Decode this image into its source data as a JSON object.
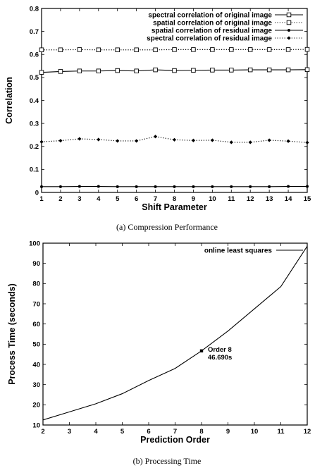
{
  "chart_data": [
    {
      "type": "line",
      "title": "",
      "xlabel": "Shift Parameter",
      "ylabel": "Correlation",
      "x": [
        1,
        2,
        3,
        4,
        5,
        6,
        7,
        8,
        9,
        10,
        11,
        12,
        13,
        14,
        15
      ],
      "xlim": [
        1,
        15
      ],
      "ylim": [
        0,
        0.8
      ],
      "xticks": [
        "1",
        "2",
        "3",
        "4",
        "5",
        "6",
        "7",
        "8",
        "9",
        "10",
        "11",
        "12",
        "13",
        "14",
        "15"
      ],
      "yticks": [
        "0",
        "0.1",
        "0.2",
        "0.3",
        "0.4",
        "0.5",
        "0.6",
        "0.7",
        "0.8"
      ],
      "grid": false,
      "legend_position": "top-right",
      "series": [
        {
          "name": "spectral correlation of original image",
          "style": "solid",
          "marker": "open-square",
          "values": [
            0.522,
            0.526,
            0.528,
            0.528,
            0.53,
            0.528,
            0.533,
            0.53,
            0.531,
            0.532,
            0.532,
            0.533,
            0.533,
            0.533,
            0.534
          ]
        },
        {
          "name": "spatial correlation of original image",
          "style": "dotted",
          "marker": "open-square",
          "values": [
            0.62,
            0.62,
            0.621,
            0.62,
            0.62,
            0.62,
            0.62,
            0.621,
            0.621,
            0.621,
            0.621,
            0.621,
            0.621,
            0.621,
            0.622
          ]
        },
        {
          "name": "spatial correlation of residual image",
          "style": "solid",
          "marker": "filled-circle",
          "values": [
            0.025,
            0.025,
            0.026,
            0.026,
            0.025,
            0.025,
            0.025,
            0.025,
            0.025,
            0.025,
            0.025,
            0.025,
            0.025,
            0.026,
            0.026
          ]
        },
        {
          "name": "spectral correlation of residual image",
          "style": "dotted",
          "marker": "filled-diamond",
          "values": [
            0.22,
            0.225,
            0.233,
            0.23,
            0.224,
            0.224,
            0.243,
            0.229,
            0.226,
            0.227,
            0.218,
            0.218,
            0.227,
            0.223,
            0.217
          ]
        }
      ]
    },
    {
      "type": "line",
      "title": "",
      "xlabel": "Prediction Order",
      "ylabel": "Process Time (seconds)",
      "x": [
        2,
        3,
        4,
        5,
        6,
        7,
        8,
        9,
        10,
        11,
        12
      ],
      "xlim": [
        2,
        12
      ],
      "ylim": [
        10,
        100
      ],
      "xticks": [
        "2",
        "3",
        "4",
        "5",
        "6",
        "7",
        "8",
        "9",
        "10",
        "11",
        "12"
      ],
      "yticks": [
        "10",
        "20",
        "30",
        "40",
        "50",
        "60",
        "70",
        "80",
        "90",
        "100"
      ],
      "grid": false,
      "legend_position": "top-right",
      "series": [
        {
          "name": "online least squares",
          "style": "solid",
          "marker": "none",
          "values": [
            12.5,
            16.5,
            20.5,
            25.5,
            32.0,
            38.0,
            46.69,
            56.5,
            67.5,
            78.5,
            98.5
          ]
        }
      ],
      "annotations": [
        {
          "x": 8,
          "y": 46.69,
          "lines": [
            "Order 8",
            "46.690s"
          ]
        }
      ]
    }
  ],
  "captions": {
    "a": "(a)    Compression Performance",
    "b": "(b)    Processing Time"
  }
}
